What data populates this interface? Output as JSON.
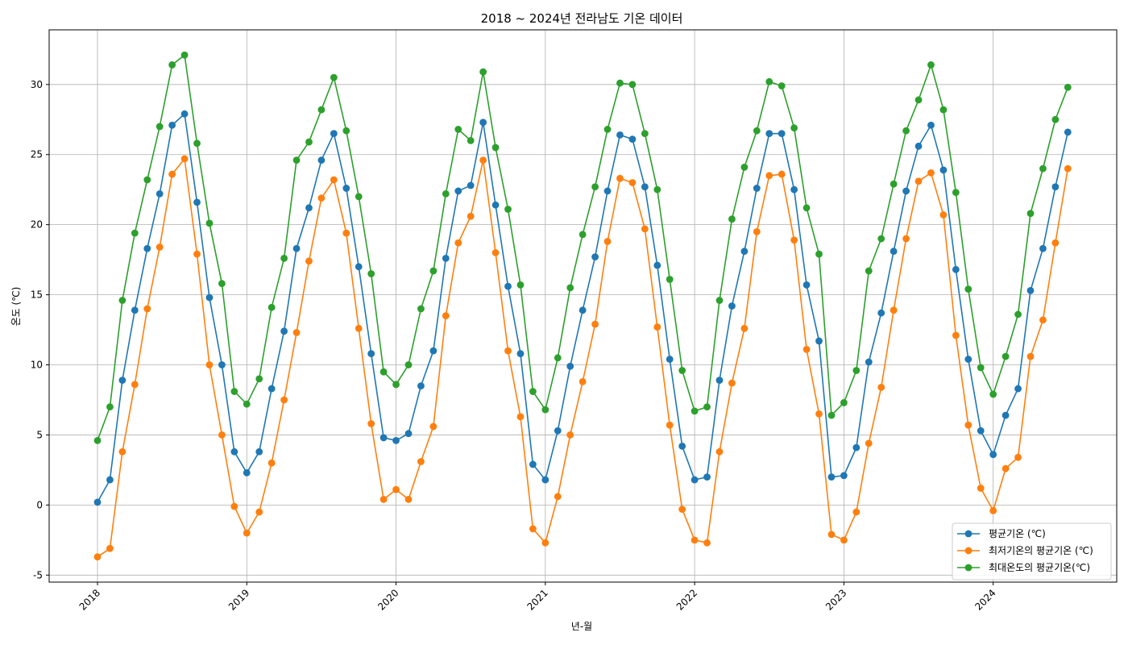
{
  "chart_data": {
    "type": "line",
    "title": "2018 ~ 2024년 전라남도 기온 데이터",
    "xlabel": "년-월",
    "ylabel": "온도 (℃)",
    "x_start_year": 2018,
    "xticks": [
      "2018",
      "2019",
      "2020",
      "2021",
      "2022",
      "2023",
      "2024"
    ],
    "yticks": [
      -5,
      0,
      5,
      10,
      15,
      20,
      25,
      30
    ],
    "ylim": [
      -5.5,
      33.9
    ],
    "grid": true,
    "legend_position": "bottom-right",
    "series": [
      {
        "name": "평균기온 (℃)",
        "color": "#1f77b4",
        "values": [
          0.2,
          1.8,
          8.9,
          13.9,
          18.3,
          22.2,
          27.1,
          27.9,
          21.6,
          14.8,
          10.0,
          3.8,
          2.3,
          3.8,
          8.3,
          12.4,
          18.3,
          21.2,
          24.6,
          26.5,
          22.6,
          17.0,
          10.8,
          4.8,
          4.6,
          5.1,
          8.5,
          11.0,
          17.6,
          22.4,
          22.8,
          27.3,
          21.4,
          15.6,
          10.8,
          2.9,
          1.8,
          5.3,
          9.9,
          13.9,
          17.7,
          22.4,
          26.4,
          26.1,
          22.7,
          17.1,
          10.4,
          4.2,
          1.8,
          2.0,
          8.9,
          14.2,
          18.1,
          22.6,
          26.5,
          26.5,
          22.5,
          15.7,
          11.7,
          2.0,
          2.1,
          4.1,
          10.2,
          13.7,
          18.1,
          22.4,
          25.6,
          27.1,
          23.9,
          16.8,
          10.4,
          5.3,
          3.6,
          6.4,
          8.3,
          15.3,
          18.3,
          22.7,
          26.6
        ]
      },
      {
        "name": "최저기온의 평균기온 (℃)",
        "color": "#ff7f0e",
        "values": [
          -3.7,
          -3.1,
          3.8,
          8.6,
          14.0,
          18.4,
          23.6,
          24.7,
          17.9,
          10.0,
          5.0,
          -0.1,
          -2.0,
          -0.5,
          3.0,
          7.5,
          12.3,
          17.4,
          21.9,
          23.2,
          19.4,
          12.6,
          5.8,
          0.4,
          1.1,
          0.4,
          3.1,
          5.6,
          13.5,
          18.7,
          20.6,
          24.6,
          18.0,
          11.0,
          6.3,
          -1.7,
          -2.7,
          0.6,
          5.0,
          8.8,
          12.9,
          18.8,
          23.3,
          23.0,
          19.7,
          12.7,
          5.7,
          -0.3,
          -2.5,
          -2.7,
          3.8,
          8.7,
          12.6,
          19.5,
          23.5,
          23.6,
          18.9,
          11.1,
          6.5,
          -2.1,
          -2.5,
          -0.5,
          4.4,
          8.4,
          13.9,
          19.0,
          23.1,
          23.7,
          20.7,
          12.1,
          5.7,
          1.2,
          -0.4,
          2.6,
          3.4,
          10.6,
          13.2,
          18.7,
          24.0
        ]
      },
      {
        "name": "최대온도의 평균기온(℃)",
        "color": "#2ca02c",
        "values": [
          4.6,
          7.0,
          14.6,
          19.4,
          23.2,
          27.0,
          31.4,
          32.1,
          25.8,
          20.1,
          15.8,
          8.1,
          7.2,
          9.0,
          14.1,
          17.6,
          24.6,
          25.9,
          28.2,
          30.5,
          26.7,
          22.0,
          16.5,
          9.5,
          8.6,
          10.0,
          14.0,
          16.7,
          22.2,
          26.8,
          26.0,
          30.9,
          25.5,
          21.1,
          15.7,
          8.1,
          6.8,
          10.5,
          15.5,
          19.3,
          22.7,
          26.8,
          30.1,
          30.0,
          26.5,
          22.5,
          16.1,
          9.6,
          6.7,
          7.0,
          14.6,
          20.4,
          24.1,
          26.7,
          30.2,
          29.9,
          26.9,
          21.2,
          17.9,
          6.4,
          7.3,
          9.6,
          16.7,
          19.0,
          22.9,
          26.7,
          28.9,
          31.4,
          28.2,
          22.3,
          15.4,
          9.8,
          7.9,
          10.6,
          13.6,
          20.8,
          24.0,
          27.5,
          29.8
        ]
      }
    ]
  }
}
